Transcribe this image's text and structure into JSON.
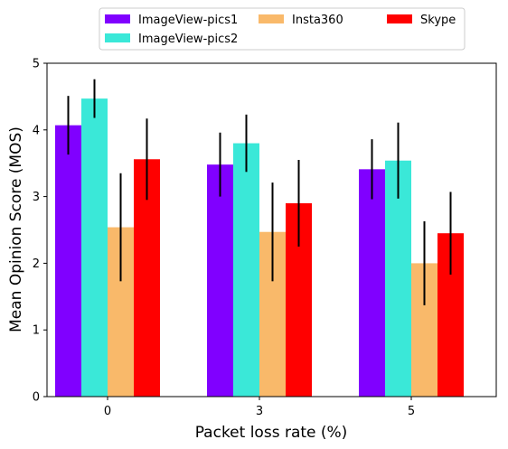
{
  "chart_data": {
    "type": "bar",
    "xlabel": "Packet loss rate (%)",
    "ylabel": "Mean Opinion Score (MOS)",
    "categories": [
      "0",
      "3",
      "5"
    ],
    "ylim": [
      0,
      5
    ],
    "yticks": [
      "0",
      "1",
      "2",
      "3",
      "4",
      "5"
    ],
    "error_bars": true,
    "legend_position": "top-center",
    "grid": false,
    "series": [
      {
        "name": "ImageView-pics1",
        "color": "#8000ff",
        "values": [
          4.07,
          3.48,
          3.41
        ],
        "errors": [
          0.44,
          0.48,
          0.45
        ]
      },
      {
        "name": "ImageView-pics2",
        "color": "#3ae8d8",
        "values": [
          4.47,
          3.8,
          3.54
        ],
        "errors": [
          0.29,
          0.43,
          0.57
        ]
      },
      {
        "name": "Insta360",
        "color": "#f9b96a",
        "values": [
          2.54,
          2.47,
          2.0
        ],
        "errors": [
          0.81,
          0.74,
          0.63
        ]
      },
      {
        "name": "Skype",
        "color": "#ff0000",
        "values": [
          3.56,
          2.9,
          2.45
        ],
        "errors": [
          0.61,
          0.65,
          0.62
        ]
      }
    ]
  }
}
